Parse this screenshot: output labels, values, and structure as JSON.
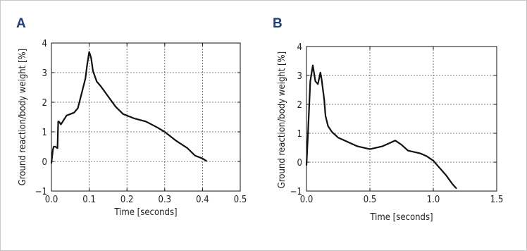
{
  "panels": {
    "a": {
      "label": "A"
    },
    "b": {
      "label": "B"
    }
  },
  "chart_data": [
    {
      "type": "line",
      "panel": "A",
      "xlabel": "Time [seconds]",
      "ylabel": "Ground reaction/body weight [%]",
      "xlim": [
        0,
        0.5
      ],
      "ylim": [
        -1,
        4
      ],
      "xticks": [
        0,
        0.1,
        0.2,
        0.3,
        0.4,
        0.5
      ],
      "xtick_labels": [
        "0.0",
        "0.1",
        "0.2",
        "0.3",
        "0.4",
        "0.5"
      ],
      "yticks": [
        -1,
        0,
        1,
        2,
        3,
        4
      ],
      "ytick_labels": [
        "−1",
        "0",
        "1",
        "2",
        "3",
        "4"
      ],
      "grid": true,
      "series": [
        {
          "color": "#111111",
          "x": [
            0.0,
            0.004,
            0.006,
            0.01,
            0.016,
            0.018,
            0.02,
            0.025,
            0.03,
            0.04,
            0.05,
            0.06,
            0.07,
            0.08,
            0.09,
            0.095,
            0.1,
            0.105,
            0.11,
            0.12,
            0.13,
            0.15,
            0.17,
            0.19,
            0.2,
            0.22,
            0.25,
            0.28,
            0.3,
            0.33,
            0.36,
            0.38,
            0.4,
            0.41
          ],
          "y": [
            -0.05,
            0.4,
            0.5,
            0.5,
            0.45,
            1.35,
            1.35,
            1.25,
            1.35,
            1.55,
            1.6,
            1.65,
            1.8,
            2.3,
            2.8,
            3.3,
            3.7,
            3.5,
            3.05,
            2.7,
            2.55,
            2.2,
            1.85,
            1.6,
            1.55,
            1.45,
            1.35,
            1.15,
            1.0,
            0.7,
            0.45,
            0.2,
            0.1,
            0.02
          ]
        }
      ]
    },
    {
      "type": "line",
      "panel": "B",
      "xlabel": "Time [seconds]",
      "ylabel": "Ground reaction/body weight [%]",
      "xlim": [
        0,
        1.5
      ],
      "ylim": [
        -1,
        4
      ],
      "xticks": [
        0,
        0.5,
        1.0,
        1.5
      ],
      "xtick_labels": [
        "0.0",
        "0.5",
        "1.0",
        "1.5"
      ],
      "yticks": [
        -1,
        0,
        1,
        2,
        3,
        4
      ],
      "ytick_labels": [
        "−1",
        "0",
        "1",
        "2",
        "3",
        "4"
      ],
      "grid": true,
      "series": [
        {
          "color": "#111111",
          "x": [
            0.0,
            0.01,
            0.02,
            0.03,
            0.05,
            0.07,
            0.09,
            0.11,
            0.12,
            0.13,
            0.14,
            0.15,
            0.17,
            0.2,
            0.25,
            0.3,
            0.4,
            0.5,
            0.6,
            0.65,
            0.7,
            0.75,
            0.8,
            0.9,
            0.95,
            1.0,
            1.05,
            1.1,
            1.15,
            1.18
          ],
          "y": [
            -0.1,
            0.8,
            1.8,
            2.8,
            3.35,
            2.8,
            2.7,
            3.1,
            2.85,
            2.5,
            2.15,
            1.6,
            1.25,
            1.05,
            0.85,
            0.75,
            0.55,
            0.45,
            0.55,
            0.65,
            0.75,
            0.6,
            0.4,
            0.3,
            0.2,
            0.05,
            -0.2,
            -0.45,
            -0.75,
            -0.9
          ]
        }
      ]
    }
  ]
}
